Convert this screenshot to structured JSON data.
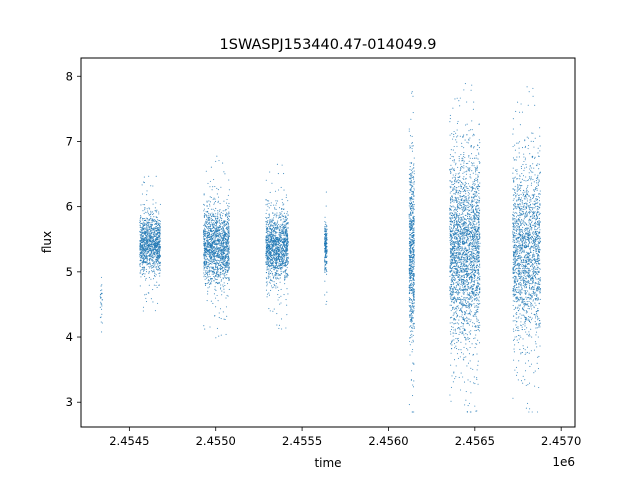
{
  "chart_data": {
    "type": "scatter",
    "title": "1SWASPJ153440.47-014049.9",
    "xlabel": "time",
    "ylabel": "flux",
    "x_offset_label": "1e6",
    "xlim": [
      2454220,
      2457080
    ],
    "ylim": [
      2.62,
      8.28
    ],
    "x_ticks": [
      {
        "value": 2454500,
        "label": "2.4545"
      },
      {
        "value": 2455000,
        "label": "2.4550"
      },
      {
        "value": 2455500,
        "label": "2.4555"
      },
      {
        "value": 2456000,
        "label": "2.4560"
      },
      {
        "value": 2456500,
        "label": "2.4565"
      },
      {
        "value": 2457000,
        "label": "2.4570"
      }
    ],
    "y_ticks": [
      {
        "value": 3,
        "label": "3"
      },
      {
        "value": 4,
        "label": "4"
      },
      {
        "value": 5,
        "label": "5"
      },
      {
        "value": 6,
        "label": "6"
      },
      {
        "value": 7,
        "label": "7"
      },
      {
        "value": 8,
        "label": "8"
      }
    ],
    "grid": false,
    "marker_color": "#1f77b4",
    "clusters": [
      {
        "x_min": 2454330,
        "x_max": 2454345,
        "y_center": 4.55,
        "y_spread": 0.18,
        "n": 30
      },
      {
        "x_min": 2454560,
        "x_max": 2454680,
        "y_center": 5.42,
        "y_spread": 0.22,
        "n": 1100
      },
      {
        "x_min": 2454930,
        "x_max": 2455080,
        "y_center": 5.38,
        "y_spread": 0.28,
        "n": 1500
      },
      {
        "x_min": 2455290,
        "x_max": 2455420,
        "y_center": 5.38,
        "y_spread": 0.26,
        "n": 1300
      },
      {
        "x_min": 2455630,
        "x_max": 2455645,
        "y_center": 5.38,
        "y_spread": 0.18,
        "n": 200
      },
      {
        "x_min": 2456120,
        "x_max": 2456150,
        "y_center": 5.3,
        "y_spread": 0.65,
        "n": 700
      },
      {
        "x_min": 2456355,
        "x_max": 2456530,
        "y_center": 5.35,
        "y_spread": 0.7,
        "n": 2500
      },
      {
        "x_min": 2456720,
        "x_max": 2456880,
        "y_center": 5.3,
        "y_spread": 0.65,
        "n": 1800
      }
    ]
  }
}
